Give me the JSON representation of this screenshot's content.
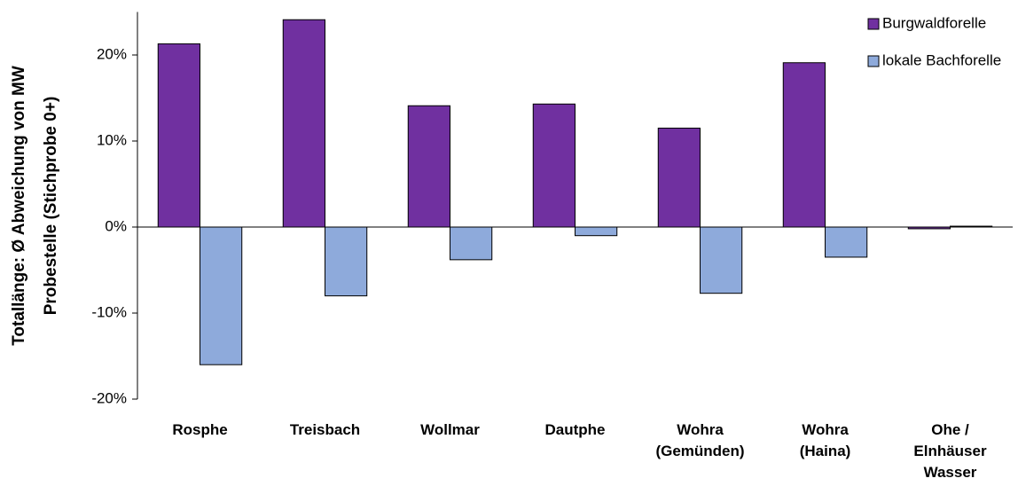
{
  "chart_data": {
    "type": "bar",
    "y_label": "Totallänge: Ø Abweichung von MW\nProbestelle (Stichprobe 0+)",
    "categories": [
      "Rosphe",
      "Treisbach",
      "Wollmar",
      "Dautphe",
      "Wohra\n(Gemünden)",
      "Wohra\n(Haina)",
      "Ohe /\nElnhäuser\nWasser"
    ],
    "series": [
      {
        "name": "Burgwaldforelle",
        "color": "#7030a0",
        "values": [
          21.3,
          24.1,
          14.1,
          14.3,
          11.5,
          19.1,
          -0.2
        ]
      },
      {
        "name": "lokale Bachforelle",
        "color": "#8eaadb",
        "values": [
          -16.0,
          -8.0,
          -3.8,
          -1.0,
          -7.7,
          -3.5,
          0.1
        ]
      }
    ],
    "ylim": [
      -20,
      25
    ],
    "yticks": [
      {
        "value": -20,
        "label": "-20%"
      },
      {
        "value": -10,
        "label": "-10%"
      },
      {
        "value": 0,
        "label": "0%"
      },
      {
        "value": 10,
        "label": "10%"
      },
      {
        "value": 20,
        "label": "20%"
      }
    ],
    "legend": "top-right"
  }
}
